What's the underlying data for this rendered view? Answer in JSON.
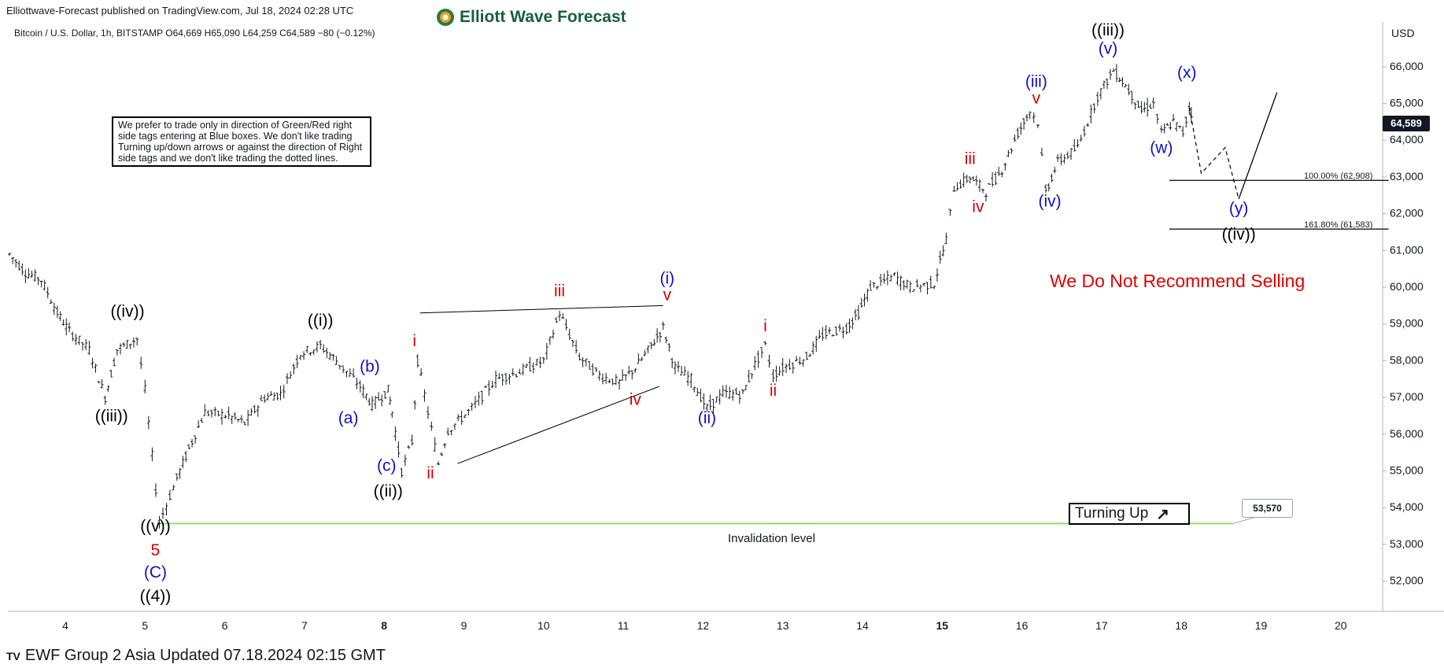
{
  "header": {
    "published": "Elliottwave-Forecast published on TradingView.com, Jul 18, 2024 02:28 UTC",
    "brand": "Elliott Wave Forecast",
    "symbol_line": "Bitcoin / U.S. Dollar, 1h, BITSTAMP  O64,669  H65,090  L64,259  C64,589  −80 (−0.12%)"
  },
  "note": "We prefer to trade only in direction of Green/Red right side tags entering at Blue boxes. We don't like trading Turning up/down arrows or against the direction of Right side tags and we don't like trading the dotted lines.",
  "recommend": "We Do Not Recommend Selling",
  "turning_up": "Turning Up",
  "invalidation": {
    "label": "Invalidation level",
    "value": "53,570"
  },
  "fib_levels": [
    {
      "label": "100.00% (62,908)"
    },
    {
      "label": "161.80% (61,583)"
    }
  ],
  "price_axis": {
    "currency": "USD",
    "current": "64,589"
  },
  "footer": {
    "logo": "TV",
    "text": "EWF Group 2 Asia Updated 07.18.2024 02:15 GMT"
  },
  "colors": {
    "black_label": "#000000",
    "blue_label": "#1010c8",
    "red_label": "#d40000",
    "invalidation_line": "#8fdc6a",
    "recommend": "#e00000"
  },
  "chart_data": {
    "type": "line",
    "title": "",
    "xlabel": "",
    "ylabel": "",
    "ylim": [
      51500,
      67200
    ],
    "y_ticks": [
      "52,000",
      "53,000",
      "54,000",
      "55,000",
      "56,000",
      "57,000",
      "58,000",
      "59,000",
      "60,000",
      "61,000",
      "62,000",
      "63,000",
      "64,000",
      "65,000",
      "66,000"
    ],
    "x_ticks": [
      {
        "label": "4",
        "t": 4,
        "bold": false
      },
      {
        "label": "5",
        "t": 5,
        "bold": false
      },
      {
        "label": "6",
        "t": 6,
        "bold": false
      },
      {
        "label": "7",
        "t": 7,
        "bold": false
      },
      {
        "label": "8",
        "t": 8,
        "bold": true
      },
      {
        "label": "9",
        "t": 9,
        "bold": false
      },
      {
        "label": "10",
        "t": 10,
        "bold": false
      },
      {
        "label": "11",
        "t": 11,
        "bold": false
      },
      {
        "label": "12",
        "t": 12,
        "bold": false
      },
      {
        "label": "13",
        "t": 13,
        "bold": false
      },
      {
        "label": "14",
        "t": 14,
        "bold": false
      },
      {
        "label": "15",
        "t": 15,
        "bold": true
      },
      {
        "label": "16",
        "t": 16,
        "bold": false
      },
      {
        "label": "17",
        "t": 17,
        "bold": false
      },
      {
        "label": "18",
        "t": 18,
        "bold": false
      },
      {
        "label": "19",
        "t": 19,
        "bold": false
      },
      {
        "label": "20",
        "t": 20,
        "bold": false
      }
    ],
    "price_path": [
      [
        3.3,
        60900
      ],
      [
        3.5,
        60400
      ],
      [
        3.7,
        60200
      ],
      [
        3.9,
        59300
      ],
      [
        4.05,
        58800
      ],
      [
        4.3,
        58300
      ],
      [
        4.5,
        57000
      ],
      [
        4.65,
        58300
      ],
      [
        4.9,
        58600
      ],
      [
        5.0,
        57200
      ],
      [
        5.18,
        53600
      ],
      [
        5.4,
        54800
      ],
      [
        5.55,
        55600
      ],
      [
        5.75,
        56600
      ],
      [
        6.05,
        56500
      ],
      [
        6.25,
        56300
      ],
      [
        6.5,
        57000
      ],
      [
        6.7,
        57100
      ],
      [
        6.95,
        58200
      ],
      [
        7.2,
        58400
      ],
      [
        7.4,
        58000
      ],
      [
        7.7,
        57300
      ],
      [
        7.85,
        56800
      ],
      [
        8.05,
        57200
      ],
      [
        8.1,
        56600
      ],
      [
        8.22,
        55000
      ],
      [
        8.35,
        55800
      ],
      [
        8.42,
        58000
      ],
      [
        8.55,
        56600
      ],
      [
        8.68,
        55200
      ],
      [
        8.8,
        56100
      ],
      [
        9.1,
        56700
      ],
      [
        9.4,
        57500
      ],
      [
        9.7,
        57700
      ],
      [
        10.0,
        58000
      ],
      [
        10.2,
        59300
      ],
      [
        10.45,
        58100
      ],
      [
        10.7,
        57600
      ],
      [
        10.95,
        57400
      ],
      [
        11.15,
        57800
      ],
      [
        11.35,
        58400
      ],
      [
        11.5,
        58900
      ],
      [
        11.65,
        57800
      ],
      [
        11.85,
        57500
      ],
      [
        12.05,
        56700
      ],
      [
        12.25,
        57100
      ],
      [
        12.5,
        57100
      ],
      [
        12.65,
        57900
      ],
      [
        12.78,
        58400
      ],
      [
        12.88,
        57600
      ],
      [
        13.0,
        57800
      ],
      [
        13.3,
        58100
      ],
      [
        13.5,
        58700
      ],
      [
        13.8,
        58900
      ],
      [
        13.95,
        59300
      ],
      [
        14.1,
        60000
      ],
      [
        14.4,
        60300
      ],
      [
        14.6,
        60000
      ],
      [
        14.9,
        60100
      ],
      [
        15.05,
        61300
      ],
      [
        15.15,
        62700
      ],
      [
        15.35,
        63000
      ],
      [
        15.55,
        62600
      ],
      [
        15.75,
        63200
      ],
      [
        15.95,
        64200
      ],
      [
        16.1,
        64800
      ],
      [
        16.2,
        64500
      ],
      [
        16.3,
        62600
      ],
      [
        16.45,
        63400
      ],
      [
        16.7,
        63800
      ],
      [
        16.95,
        65200
      ],
      [
        17.15,
        65900
      ],
      [
        17.3,
        65500
      ],
      [
        17.5,
        64800
      ],
      [
        17.65,
        65000
      ],
      [
        17.75,
        64200
      ],
      [
        17.9,
        64500
      ],
      [
        18.02,
        64200
      ],
      [
        18.1,
        64900
      ],
      [
        18.15,
        64589
      ]
    ],
    "projection": {
      "dotted": [
        [
          18.1,
          64900
        ],
        [
          18.25,
          63100
        ],
        [
          18.55,
          63800
        ],
        [
          18.72,
          62400
        ]
      ],
      "solid": [
        [
          18.72,
          62400
        ],
        [
          19.2,
          65300
        ]
      ]
    },
    "channels": [
      [
        [
          8.45,
          59300
        ],
        [
          11.5,
          59500
        ]
      ],
      [
        [
          8.92,
          55200
        ],
        [
          11.45,
          57300
        ]
      ]
    ],
    "fib_lines": [
      {
        "value": 62908,
        "t0": 17.85,
        "t1": 20.6
      },
      {
        "value": 61583,
        "t0": 17.85,
        "t1": 20.6
      }
    ],
    "invalidation_line": {
      "value": 53570,
      "t0": 5.2,
      "t1": 18.65
    },
    "wave_labels": [
      {
        "text": "((iv))",
        "t": 4.78,
        "y": 59200,
        "color": "black"
      },
      {
        "text": "((iii))",
        "t": 4.58,
        "y": 56350,
        "color": "black"
      },
      {
        "text": "((v))",
        "t": 5.13,
        "y": 53350,
        "color": "black"
      },
      {
        "text": "5",
        "t": 5.13,
        "y": 52700,
        "color": "red"
      },
      {
        "text": "(C)",
        "t": 5.13,
        "y": 52100,
        "color": "blue"
      },
      {
        "text": "((4))",
        "t": 5.13,
        "y": 51450,
        "color": "black"
      },
      {
        "text": "((i))",
        "t": 7.2,
        "y": 58950,
        "color": "black"
      },
      {
        "text": "(b)",
        "t": 7.82,
        "y": 57700,
        "color": "blue"
      },
      {
        "text": "(a)",
        "t": 7.55,
        "y": 56300,
        "color": "blue"
      },
      {
        "text": "(c)",
        "t": 8.03,
        "y": 55000,
        "color": "blue"
      },
      {
        "text": "((ii))",
        "t": 8.05,
        "y": 54300,
        "color": "black"
      },
      {
        "text": "i",
        "t": 8.38,
        "y": 58400,
        "color": "red"
      },
      {
        "text": "ii",
        "t": 8.58,
        "y": 54800,
        "color": "red"
      },
      {
        "text": "iii",
        "t": 10.2,
        "y": 59750,
        "color": "red"
      },
      {
        "text": "iv",
        "t": 11.15,
        "y": 56800,
        "color": "red"
      },
      {
        "text": "v",
        "t": 11.55,
        "y": 59650,
        "color": "red"
      },
      {
        "text": "(i)",
        "t": 11.55,
        "y": 60100,
        "color": "blue"
      },
      {
        "text": "(ii)",
        "t": 12.05,
        "y": 56300,
        "color": "blue"
      },
      {
        "text": "i",
        "t": 12.78,
        "y": 58800,
        "color": "red"
      },
      {
        "text": "ii",
        "t": 12.88,
        "y": 57050,
        "color": "red"
      },
      {
        "text": "iii",
        "t": 15.35,
        "y": 63350,
        "color": "red"
      },
      {
        "text": "iv",
        "t": 15.45,
        "y": 62050,
        "color": "red"
      },
      {
        "text": "v",
        "t": 16.18,
        "y": 65000,
        "color": "red"
      },
      {
        "text": "(iii)",
        "t": 16.18,
        "y": 65450,
        "color": "blue"
      },
      {
        "text": "(iv)",
        "t": 16.35,
        "y": 62200,
        "color": "blue"
      },
      {
        "text": "(v)",
        "t": 17.08,
        "y": 66350,
        "color": "blue"
      },
      {
        "text": "((iii))",
        "t": 17.08,
        "y": 66850,
        "color": "black"
      },
      {
        "text": "(x)",
        "t": 18.07,
        "y": 65700,
        "color": "blue"
      },
      {
        "text": "(w)",
        "t": 17.75,
        "y": 63650,
        "color": "blue"
      },
      {
        "text": "(y)",
        "t": 18.72,
        "y": 62000,
        "color": "blue"
      },
      {
        "text": "((iv))",
        "t": 18.72,
        "y": 61300,
        "color": "black"
      }
    ]
  }
}
